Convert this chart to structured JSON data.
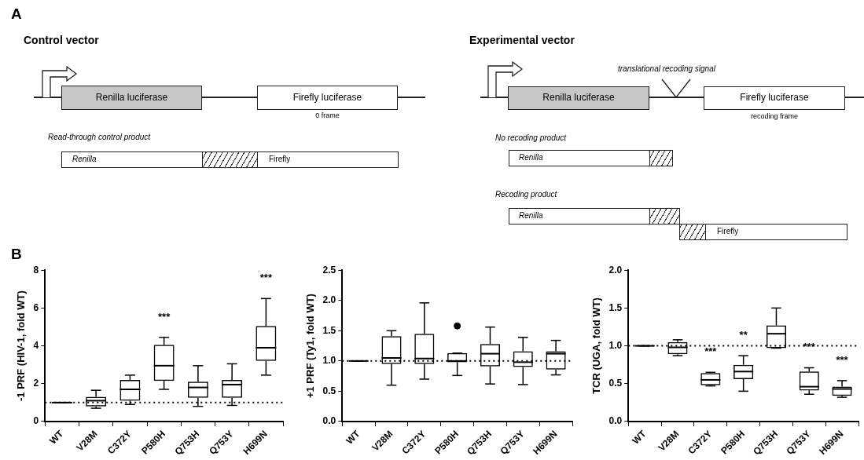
{
  "chart_data": [
    {
      "type": "other",
      "annotations": [
        "A",
        "Control vector",
        "Renilla luciferase",
        "Firefly luciferase",
        "0 frame",
        "Read-through control product",
        "Renilla",
        "Firefly",
        "Experimental vector",
        "translational recoding signal",
        "Renilla luciferase",
        "Firefly luciferase",
        "recoding frame",
        "No recoding product",
        "Renilla",
        "Recoding product",
        "Renilla",
        "Firefly",
        "B"
      ]
    },
    {
      "type": "box",
      "ylabel": "-1 PRF (HIV-1, fold WT)",
      "categories": [
        "WT",
        "V28M",
        "C372Y",
        "P580H",
        "Q753H",
        "Q753Y",
        "H699N"
      ],
      "ylim": [
        0,
        8
      ],
      "yticks": [
        0,
        2,
        4,
        6,
        8
      ],
      "boxes": [
        {
          "low": 1,
          "q1": 1,
          "median": 1,
          "q3": 1,
          "high": 1
        },
        {
          "low": 0.7,
          "q1": 0.8,
          "median": 1.1,
          "q3": 1.3,
          "high": 1.65
        },
        {
          "low": 0.9,
          "q1": 1.1,
          "median": 1.7,
          "q3": 2.2,
          "high": 2.45
        },
        {
          "low": 1.7,
          "q1": 2.15,
          "median": 2.95,
          "q3": 4.05,
          "high": 4.45
        },
        {
          "low": 0.8,
          "q1": 1.25,
          "median": 1.8,
          "q3": 2.1,
          "high": 2.95
        },
        {
          "low": 0.85,
          "q1": 1.25,
          "median": 1.95,
          "q3": 2.2,
          "high": 3.05
        },
        {
          "low": 2.45,
          "q1": 3.2,
          "median": 3.9,
          "q3": 5.05,
          "high": 6.5
        }
      ],
      "ref_lines": [
        {
          "axis": "y",
          "value": 1,
          "line_style": "dotted"
        }
      ],
      "annotations": [
        {
          "text": "***",
          "x": "P580H",
          "y": 4.45
        },
        {
          "text": "***",
          "x": "H699N",
          "y": 6.5
        }
      ]
    },
    {
      "type": "box",
      "ylabel": "+1 PRF (Ty1, fold WT)",
      "categories": [
        "WT",
        "V28M",
        "C372Y",
        "P580H",
        "Q753H",
        "Q753Y",
        "H699N"
      ],
      "ylim": [
        0,
        2.5
      ],
      "yticks": [
        {
          "value": 0,
          "label": "0.0"
        },
        0.5,
        {
          "value": 1,
          "label": "1.0"
        },
        1.5,
        {
          "value": 2,
          "label": "2.0"
        },
        2.5
      ],
      "boxes": [
        {
          "low": 1,
          "q1": 1,
          "median": 1,
          "q3": 1,
          "high": 1
        },
        {
          "low": 0.6,
          "q1": 0.95,
          "median": 1.05,
          "q3": 1.41,
          "high": 1.5
        },
        {
          "low": 0.7,
          "q1": 0.95,
          "median": 1.04,
          "q3": 1.45,
          "high": 1.96
        },
        {
          "low": 0.76,
          "q1": 0.98,
          "median": 1.0,
          "q3": 1.13,
          "high": 1.13,
          "outliers": [
            1.58
          ]
        },
        {
          "low": 0.62,
          "q1": 0.91,
          "median": 1.12,
          "q3": 1.28,
          "high": 1.56
        },
        {
          "low": 0.61,
          "q1": 0.9,
          "median": 0.98,
          "q3": 1.16,
          "high": 1.39
        },
        {
          "low": 0.77,
          "q1": 0.86,
          "median": 1.12,
          "q3": 1.16,
          "high": 1.34
        }
      ],
      "ref_lines": [
        {
          "axis": "y",
          "value": 1,
          "line_style": "dotted"
        }
      ]
    },
    {
      "type": "box",
      "ylabel": "TCR (UGA, fold WT)",
      "categories": [
        "WT",
        "V28M",
        "C372Y",
        "P580H",
        "Q753H",
        "Q753Y",
        "H699N"
      ],
      "ylim": [
        0,
        2
      ],
      "yticks": [
        {
          "value": 0,
          "label": "0.0"
        },
        0.5,
        {
          "value": 1,
          "label": "1.0"
        },
        1.5,
        {
          "value": 2,
          "label": "2.0"
        }
      ],
      "boxes": [
        {
          "low": 1,
          "q1": 1,
          "median": 1,
          "q3": 1,
          "high": 1
        },
        {
          "low": 0.87,
          "q1": 0.89,
          "median": 0.98,
          "q3": 1.05,
          "high": 1.08
        },
        {
          "low": 0.47,
          "q1": 0.48,
          "median": 0.55,
          "q3": 0.64,
          "high": 0.65
        },
        {
          "low": 0.4,
          "q1": 0.56,
          "median": 0.66,
          "q3": 0.75,
          "high": 0.87
        },
        {
          "low": 0.97,
          "q1": 0.97,
          "median": 1.16,
          "q3": 1.27,
          "high": 1.5
        },
        {
          "low": 0.36,
          "q1": 0.41,
          "median": 0.46,
          "q3": 0.66,
          "high": 0.71
        },
        {
          "low": 0.32,
          "q1": 0.34,
          "median": 0.43,
          "q3": 0.46,
          "high": 0.54
        }
      ],
      "ref_lines": [
        {
          "axis": "y",
          "value": 1,
          "line_style": "dotted"
        }
      ],
      "annotations": [
        {
          "text": "***",
          "x": "C372Y",
          "y": 0.65
        },
        {
          "text": "**",
          "x": "P580H",
          "y": 0.87
        },
        {
          "text": "***",
          "x": "Q753Y",
          "y": 0.71
        },
        {
          "text": "***",
          "x": "H699N",
          "y": 0.54
        }
      ]
    }
  ]
}
